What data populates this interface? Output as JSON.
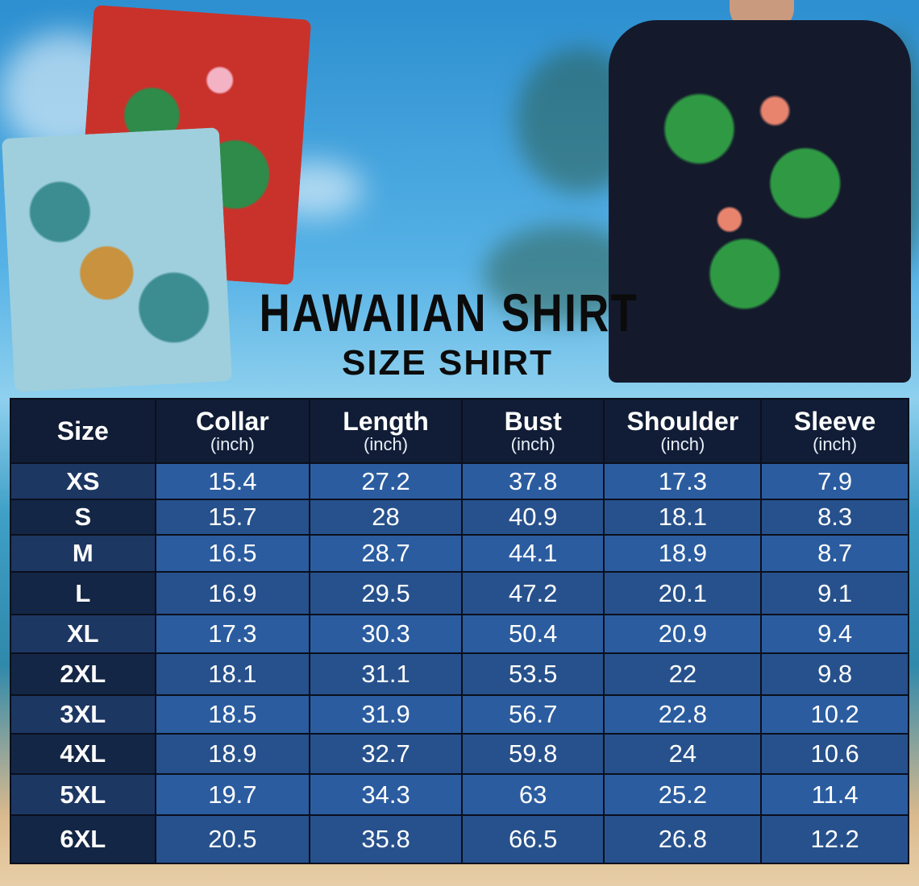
{
  "title": "HAWAIIAN SHIRT",
  "subtitle": "SIZE SHIRT",
  "colors": {
    "header_bg": "#111d36",
    "cell_light": "#2b5c9f",
    "cell_dark": "#27518c",
    "size_col": "#132645"
  },
  "table": {
    "headers": [
      {
        "label": "Size",
        "unit": ""
      },
      {
        "label": "Collar",
        "unit": "(inch)"
      },
      {
        "label": "Length",
        "unit": "(inch)"
      },
      {
        "label": "Bust",
        "unit": "(inch)"
      },
      {
        "label": "Shoulder",
        "unit": "(inch)"
      },
      {
        "label": "Sleeve",
        "unit": "(inch)"
      }
    ],
    "rows": [
      [
        "XS",
        "15.4",
        "27.2",
        "37.8",
        "17.3",
        "7.9"
      ],
      [
        "S",
        "15.7",
        "28",
        "40.9",
        "18.1",
        "8.3"
      ],
      [
        "M",
        "16.5",
        "28.7",
        "44.1",
        "18.9",
        "8.7"
      ],
      [
        "L",
        "16.9",
        "29.5",
        "47.2",
        "20.1",
        "9.1"
      ],
      [
        "XL",
        "17.3",
        "30.3",
        "50.4",
        "20.9",
        "9.4"
      ],
      [
        "2XL",
        "18.1",
        "31.1",
        "53.5",
        "22",
        "9.8"
      ],
      [
        "3XL",
        "18.5",
        "31.9",
        "56.7",
        "22.8",
        "10.2"
      ],
      [
        "4XL",
        "18.9",
        "32.7",
        "59.8",
        "24",
        "10.6"
      ],
      [
        "5XL",
        "19.7",
        "34.3",
        "63",
        "25.2",
        "11.4"
      ],
      [
        "6XL",
        "20.5",
        "35.8",
        "66.5",
        "26.8",
        "12.2"
      ]
    ]
  }
}
